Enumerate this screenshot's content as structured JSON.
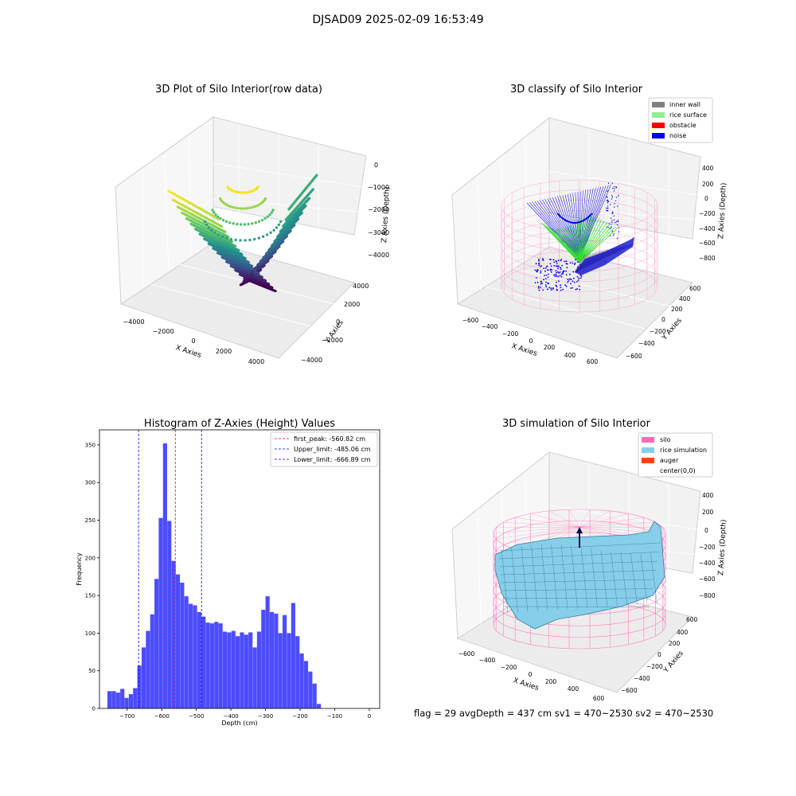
{
  "suptitle": "DJSAD09 2025-02-09 16:53:49",
  "status": "flag = 29  avgDepth = 437 cm  sv1 = 470~2530  sv2 = 470~2530",
  "chart_data": [
    {
      "type": "scatter3d",
      "title": "3D Plot of Silo Interior(row data)",
      "xlabel": "X Axies",
      "ylabel": "Y Axies",
      "zlabel": "Z Axies (Depth)",
      "xticks": [
        "−4000",
        "−2000",
        "0",
        "2000",
        "4000"
      ],
      "yticks": [
        "−4000",
        "−2000",
        "0",
        "2000",
        "4000"
      ],
      "zticks": [
        "0",
        "−1000",
        "−2000",
        "−3000",
        "−4000"
      ],
      "xlim": [
        -4500,
        4500
      ],
      "ylim": [
        -4500,
        4500
      ],
      "zlim": [
        -4500,
        200
      ],
      "colormap": "viridis"
    },
    {
      "type": "scatter3d",
      "title": "3D classify of Silo Interior",
      "xlabel": "X Axies",
      "ylabel": "Y Axies",
      "zlabel": "Z Axies (Depth)",
      "xticks": [
        "−600",
        "−400",
        "−200",
        "0",
        "200",
        "400",
        "600"
      ],
      "yticks": [
        "−600",
        "−400",
        "−200",
        "0",
        "200",
        "400",
        "600"
      ],
      "zticks": [
        "400",
        "200",
        "0",
        "−200",
        "−400",
        "−600",
        "−800"
      ],
      "legend": [
        {
          "label": "inner wall",
          "color": "#808080"
        },
        {
          "label": "rice surface",
          "color": "#90ee90"
        },
        {
          "label": "obstacle",
          "color": "#ff0000"
        },
        {
          "label": "noise",
          "color": "#0000ff"
        }
      ],
      "legend_position": "top-right"
    },
    {
      "type": "bar",
      "title": "Histogram of Z-Axies (Height) Values",
      "xlabel": "Depth (cm)",
      "ylabel": "Frequency",
      "xlim": [
        -780,
        30
      ],
      "ylim": [
        0,
        370
      ],
      "xticks": [
        -700,
        -600,
        -500,
        -400,
        -300,
        -200,
        -100,
        0
      ],
      "xtick_labels": [
        "−700",
        "−600",
        "−500",
        "−400",
        "−300",
        "−200",
        "−100",
        "0"
      ],
      "yticks": [
        0,
        50,
        100,
        150,
        200,
        250,
        300,
        350
      ],
      "bar_color": "#0000ff",
      "bin_start": -757,
      "bin_width": 12.35,
      "values": [
        23,
        23,
        21,
        26,
        14,
        19,
        27,
        57,
        81,
        103,
        125,
        172,
        253,
        352,
        249,
        196,
        178,
        167,
        149,
        139,
        137,
        128,
        122,
        114,
        113,
        115,
        113,
        102,
        101,
        103,
        96,
        101,
        98,
        101,
        81,
        102,
        131,
        149,
        128,
        126,
        100,
        124,
        100,
        140,
        96,
        73,
        63,
        49,
        33,
        6
      ],
      "vlines": [
        {
          "x": -560.82,
          "color": "#ff0000",
          "label": "first_peak: -560.82 cm"
        },
        {
          "x": -485.06,
          "color": "#0000ff",
          "label": "Upper_limit: -485.06 cm"
        },
        {
          "x": -666.89,
          "color": "#0000ff",
          "label": "Lower_limit: -666.89 cm"
        }
      ],
      "legend_position": "top-right"
    },
    {
      "type": "surface3d",
      "title": "3D simulation of Silo Interior",
      "xlabel": "X Axies",
      "ylabel": "Y Axies",
      "zlabel": "Z Axies (Depth)",
      "xticks": [
        "−600",
        "−400",
        "−200",
        "0",
        "200",
        "400",
        "600"
      ],
      "yticks": [
        "−600",
        "−400",
        "−200",
        "0",
        "200",
        "400",
        "600"
      ],
      "zticks": [
        "400",
        "200",
        "0",
        "−200",
        "−400",
        "−600",
        "−800"
      ],
      "legend": [
        {
          "label": "silo",
          "color": "#ff69b4"
        },
        {
          "label": "rice simulation",
          "color": "#87ceeb"
        },
        {
          "label": "auger",
          "color": "#ff4500"
        },
        {
          "label": "center(0,0)",
          "color": ""
        }
      ],
      "legend_position": "top-right"
    }
  ]
}
